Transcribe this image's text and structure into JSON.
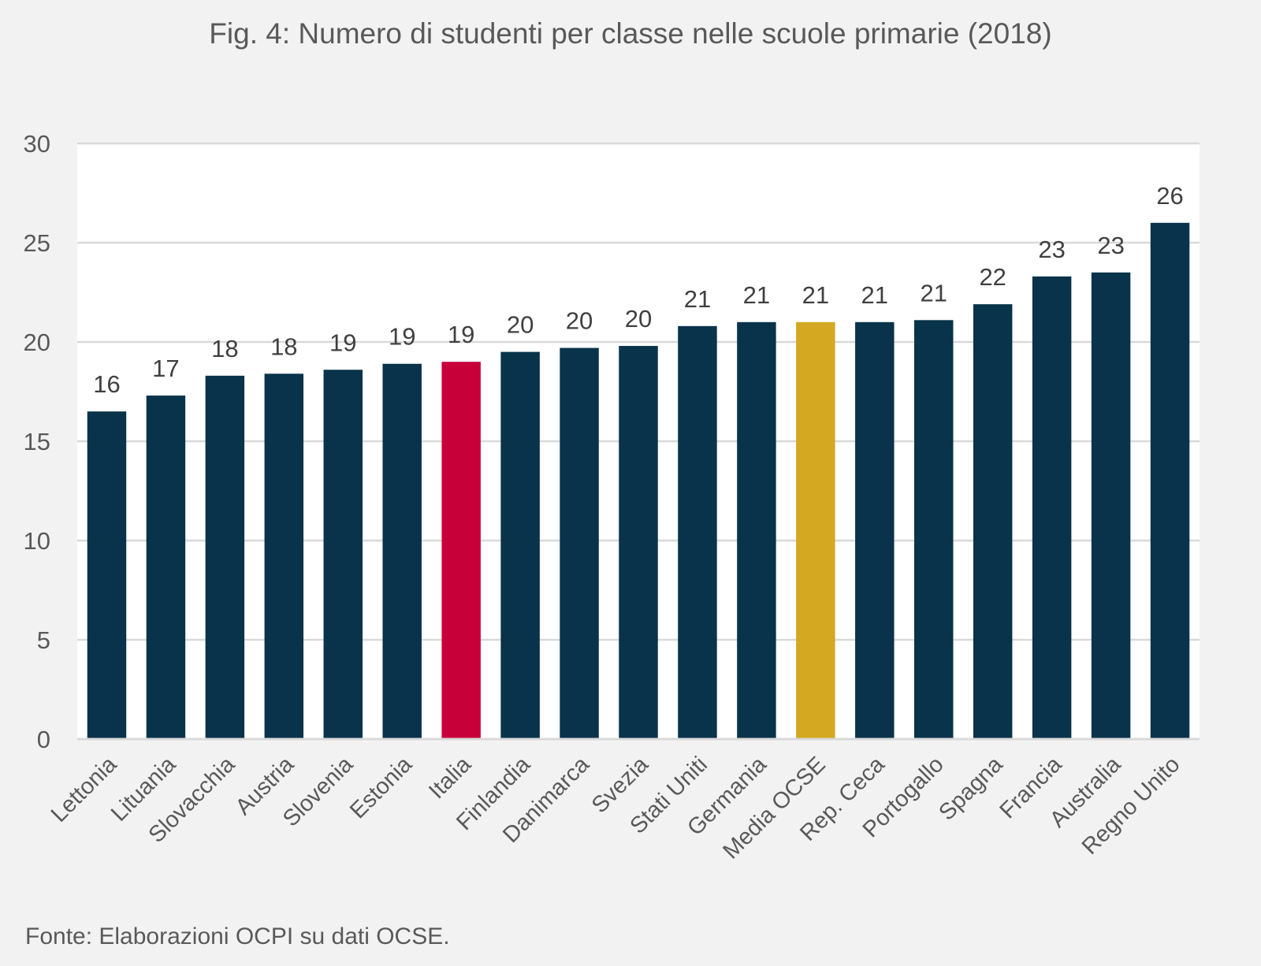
{
  "chart_data": {
    "type": "bar",
    "title": "Fig. 4: Numero di studenti per classe nelle scuole primarie (2018)",
    "xlabel": "",
    "ylabel": "",
    "ylim": [
      0,
      30
    ],
    "yticks": [
      0,
      5,
      10,
      15,
      20,
      25,
      30
    ],
    "grid": true,
    "legend": "none",
    "categories": [
      "Lettonia",
      "Lituania",
      "Slovacchia",
      "Austria",
      "Slovenia",
      "Estonia",
      "Italia",
      "Finlandia",
      "Danimarca",
      "Svezia",
      "Stati Uniti",
      "Germania",
      "Media OCSE",
      "Rep. Ceca",
      "Portogallo",
      "Spagna",
      "Francia",
      "Australia",
      "Regno Unito"
    ],
    "values": [
      16.5,
      17.3,
      18.3,
      18.4,
      18.6,
      18.9,
      19.0,
      19.5,
      19.7,
      19.8,
      20.8,
      21.0,
      21.0,
      21.0,
      21.1,
      21.9,
      23.3,
      23.5,
      26.0
    ],
    "data_labels": [
      "16",
      "17",
      "18",
      "18",
      "19",
      "19",
      "19",
      "20",
      "20",
      "20",
      "21",
      "21",
      "21",
      "21",
      "21",
      "22",
      "23",
      "23",
      "26"
    ],
    "colors": {
      "default": "#08334a",
      "Italia": "#c8003a",
      "Media OCSE": "#d4a821"
    }
  },
  "source_note": "Fonte: Elaborazioni OCPI su dati OCSE."
}
